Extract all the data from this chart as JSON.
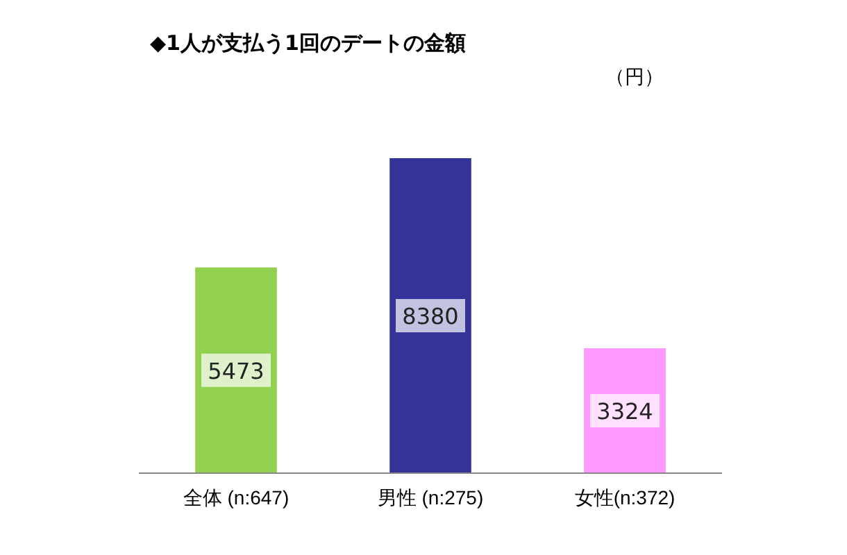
{
  "chart_data": {
    "type": "bar",
    "title": "◆1人が支払う1回のデートの金額",
    "annotations": [
      "（円）"
    ],
    "categories": [
      "全体 (n:647)",
      "男性 (n:275)",
      "女性(n:372)"
    ],
    "values": [
      5473,
      8380,
      3324
    ],
    "colors": [
      "#92d050",
      "#333399",
      "#ff99ff"
    ],
    "data_labels": true
  }
}
